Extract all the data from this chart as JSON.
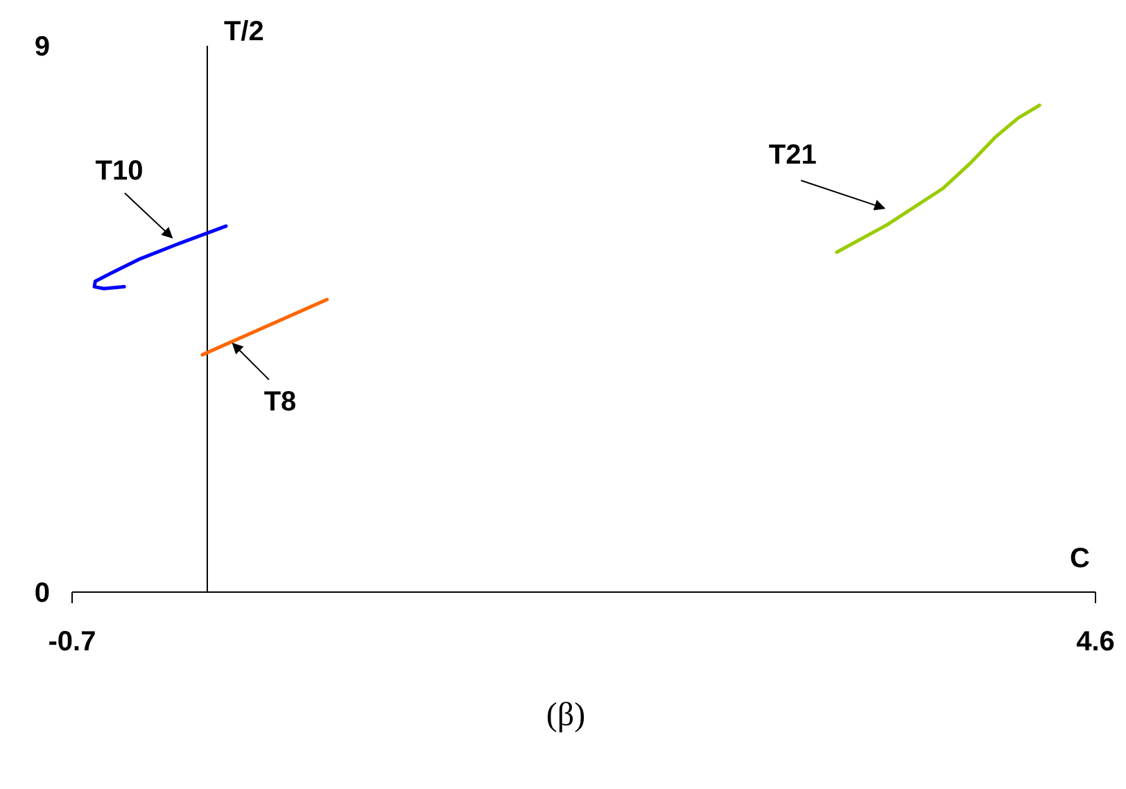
{
  "chart_data": {
    "type": "line",
    "xlabel": "C",
    "ylabel": "T/2",
    "xlim": [
      -0.7,
      4.6
    ],
    "xticks": [
      -0.7,
      4.6
    ],
    "ylim": [
      0,
      9
    ],
    "yticks": [
      0,
      9
    ],
    "grid": false,
    "legend": false,
    "marker": "none",
    "line_style": "solid",
    "series": [
      {
        "name": "T10",
        "color": "#0000ff",
        "x": [
          0.097,
          -0.14,
          -0.355,
          -0.5,
          -0.58,
          -0.585,
          -0.535,
          -0.43
        ],
        "values": [
          6.03,
          5.75,
          5.48,
          5.25,
          5.12,
          5.03,
          5.0,
          5.03
        ]
      },
      {
        "name": "T8",
        "color": "#ff6600",
        "x": [
          -0.025,
          0.62
        ],
        "values": [
          3.91,
          4.82
        ]
      },
      {
        "name": "T21",
        "color": "#99cc00",
        "x": [
          3.26,
          3.52,
          3.81,
          3.95,
          4.08,
          4.2,
          4.31
        ],
        "values": [
          5.6,
          6.05,
          6.65,
          7.06,
          7.49,
          7.81,
          8.02
        ]
      }
    ],
    "annotations": [
      "(β)"
    ]
  }
}
